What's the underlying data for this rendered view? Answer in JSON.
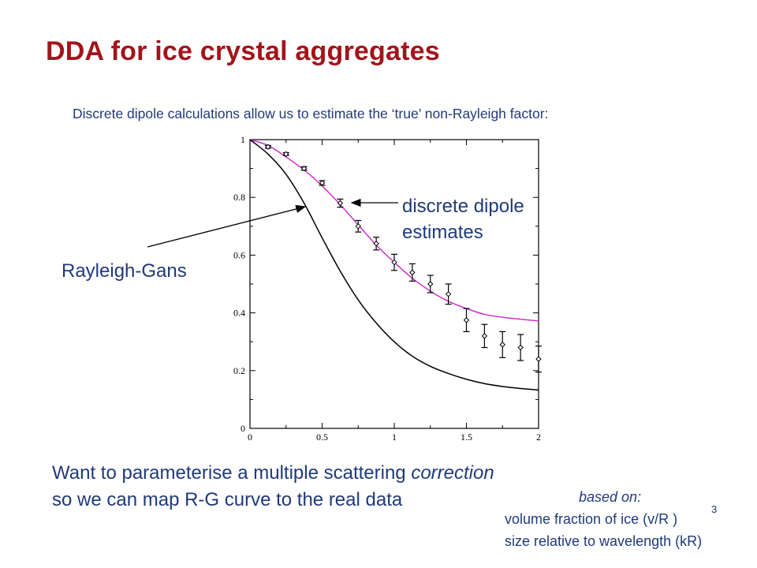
{
  "slide": {
    "title": "DDA for ice crystal aggregates",
    "intro": "Discrete dipole calculations allow us to estimate the ‘true’ non-Rayleigh factor:",
    "callout_dd_line1": "discrete dipole",
    "callout_dd_line2": "estimates",
    "callout_rg": "Rayleigh-Gans",
    "want_line1_pre": "Want to parameterise a multiple scattering ",
    "want_line1_em": "correction",
    "want_line2": "so we can map R-G curve to the real data",
    "based_on": "based on:",
    "volume_fraction": "volume fraction of ice (v/R )",
    "volume_fraction_sup": "3",
    "size_relative": "size relative to wavelength (kR)"
  },
  "colors": {
    "title": "#a3141b",
    "text": "#1f3a7a",
    "dda_fit_curve": "#cc33cc",
    "rayleigh_gans_curve": "#000000"
  },
  "chart_data": {
    "type": "scatter",
    "xlim": [
      0,
      2
    ],
    "ylim": [
      0,
      1
    ],
    "x_ticks": [
      "0",
      "0.5",
      "1",
      "1.5",
      "2"
    ],
    "x_tick_values": [
      0,
      0.5,
      1,
      1.5,
      2
    ],
    "y_ticks": [
      "0",
      "0.2",
      "0.4",
      "0.6",
      "0.8",
      "1"
    ],
    "y_tick_values": [
      0,
      0.2,
      0.4,
      0.6,
      0.8,
      1
    ],
    "grid": false,
    "series": [
      {
        "kind": "points_with_errorbars",
        "x": [
          0.125,
          0.25,
          0.375,
          0.5,
          0.625,
          0.75,
          0.875,
          1.0,
          1.125,
          1.25,
          1.375,
          1.5,
          1.625,
          1.75,
          1.875,
          2.0
        ],
        "y": [
          0.975,
          0.95,
          0.9,
          0.85,
          0.78,
          0.7,
          0.64,
          0.575,
          0.54,
          0.5,
          0.465,
          0.375,
          0.32,
          0.29,
          0.28,
          0.24
        ],
        "err": [
          0.005,
          0.005,
          0.006,
          0.008,
          0.014,
          0.02,
          0.022,
          0.028,
          0.03,
          0.03,
          0.035,
          0.04,
          0.04,
          0.045,
          0.045,
          0.045
        ]
      },
      {
        "kind": "line",
        "x": [
          0,
          0.125,
          0.25,
          0.375,
          0.5,
          0.625,
          0.75,
          0.875,
          1.0,
          1.125,
          1.25,
          1.375,
          1.5,
          1.625,
          1.75,
          1.875,
          2.0
        ],
        "y": [
          1.0,
          0.98,
          0.94,
          0.895,
          0.84,
          0.775,
          0.705,
          0.635,
          0.575,
          0.52,
          0.475,
          0.44,
          0.415,
          0.395,
          0.385,
          0.378,
          0.372
        ]
      },
      {
        "kind": "line",
        "x": [
          0,
          0.125,
          0.25,
          0.375,
          0.5,
          0.625,
          0.75,
          0.875,
          1.0,
          1.125,
          1.25,
          1.375,
          1.5,
          1.625,
          1.75,
          1.875,
          2.0
        ],
        "y": [
          1.0,
          0.95,
          0.88,
          0.78,
          0.66,
          0.545,
          0.445,
          0.365,
          0.3,
          0.25,
          0.215,
          0.19,
          0.17,
          0.155,
          0.145,
          0.138,
          0.133
        ]
      }
    ]
  }
}
